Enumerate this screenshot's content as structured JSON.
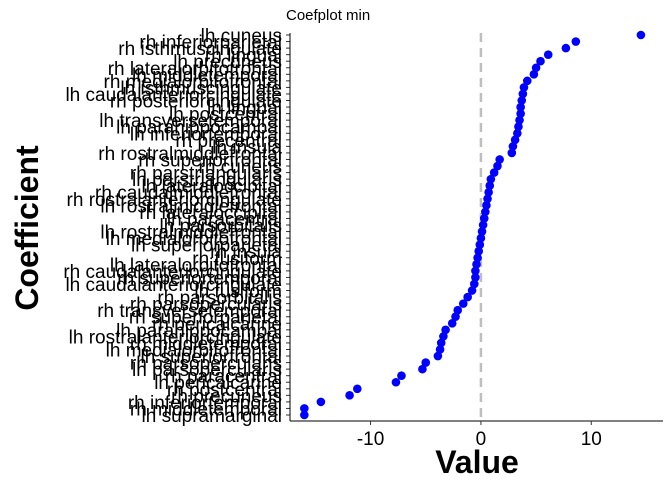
{
  "chart_data": {
    "type": "scatter",
    "title": "Coefplot min",
    "xlabel": "Value",
    "ylabel": "Coefficient",
    "xlim": [
      -17.3,
      16.5
    ],
    "xticks": [
      -10,
      0,
      10
    ],
    "xtick_labels": [
      "-10",
      "0",
      "10"
    ],
    "reference_line_x": 0,
    "grid": false,
    "point_color": "#0000ff",
    "reference_line_color": "#bebebe",
    "categories": [
      "lh cuneus",
      "rh inferiorparietal",
      "rh isthmuscingulate",
      "rh lingual",
      "lh precuneus",
      "rh lateralorbitofrontal",
      "lh middletemporal",
      "rh medialorbitofrontal",
      "lh isthmuscingulate",
      "lh caudalanteriorcingulate",
      "rh posteriorcingulate",
      "lh lingual",
      "lh postcentral",
      "lh transversetemporal",
      "lh parahippocampal",
      "lh inferiortemporal",
      "rh precentral",
      "lh insula",
      "rh rostralmiddlefrontal",
      "rh superiorfrontal",
      "rh cuneus",
      "rh parstriangularis",
      "lh parstriangularis",
      "lh lateraloccipital",
      "rh caudalmiddlefrontal",
      "rh rostralanteriorcingulate",
      "lh rostralmiddlefrontal",
      "rh lateraloccipital",
      "lh paracentral",
      "lh parsorbitalis",
      "lh rostralmiddlefrontal",
      "lh medialorbitofrontal",
      "lh superiorparietal",
      "rh insula",
      "rh fusiform",
      "lh lateralorbitofrontal",
      "rh caudalanteriorcingulate",
      "rh superiortemporal",
      "lh caudalanteriorcingulate",
      "lh fusiform",
      "rh parsorbitalis",
      "rh parsopercularis",
      "rh transversetemporal",
      "rh superiorparietal",
      "rh pericalcarine",
      "lh parahippocampal",
      "lh rostralanteriorcingulate",
      "rh middletemporal",
      "lh medialorbitofrontal",
      "lh superiorfrontal",
      "rh parsopercularis",
      "lh parsopercularis",
      "rh paracentral",
      "lh pericalcarine",
      "rh postcentral",
      "rh precuneus",
      "rh inferiortemporal",
      "rh middletemporal",
      "lh supramarginal"
    ],
    "values": [
      14.5,
      8.6,
      7.7,
      6.1,
      5.4,
      5.0,
      4.8,
      4.2,
      3.9,
      3.8,
      3.7,
      3.6,
      3.6,
      3.5,
      3.4,
      3.3,
      3.1,
      2.9,
      2.8,
      1.7,
      1.5,
      1.2,
      0.9,
      0.8,
      0.7,
      0.6,
      0.5,
      0.4,
      0.3,
      0.2,
      0.1,
      0.0,
      -0.1,
      -0.2,
      -0.3,
      -0.4,
      -0.5,
      -0.5,
      -0.6,
      -0.8,
      -1.2,
      -1.6,
      -2.1,
      -2.3,
      -2.6,
      -3.2,
      -3.4,
      -3.6,
      -3.7,
      -3.9,
      -5.0,
      -5.3,
      -7.2,
      -7.7,
      -11.2,
      -11.9,
      -14.5,
      -16.0,
      -16.0
    ]
  }
}
